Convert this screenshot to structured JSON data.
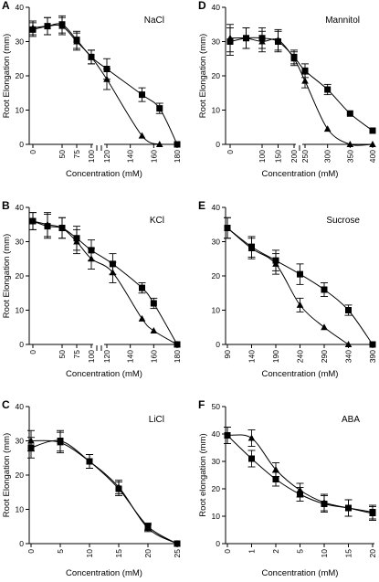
{
  "chart_data": [
    {
      "type": "line",
      "letter": "A",
      "title": "NaCl",
      "xlabel": "Concentration (mM)",
      "ylabel": "Root Elongation (mm)",
      "ylim": [
        0,
        40
      ],
      "yticks": [
        0,
        10,
        20,
        30,
        40
      ],
      "axis_break": true,
      "xticks": [
        0,
        50,
        75,
        100,
        120,
        140,
        160,
        180
      ],
      "tick_labels": [
        "0",
        "50",
        "75",
        "100",
        "120",
        "140",
        "160",
        "180"
      ],
      "marker_color": "#000000",
      "series": [
        {
          "marker": "square",
          "x": [
            0,
            25,
            50,
            75,
            100,
            120,
            150,
            165,
            180
          ],
          "y": [
            33.5,
            34.5,
            35.0,
            30.5,
            25.5,
            22.0,
            14.5,
            10.5,
            0
          ],
          "err": [
            2.0,
            2.5,
            2.5,
            2.5,
            2.0,
            3.0,
            2.0,
            1.5,
            0
          ]
        },
        {
          "marker": "triangle",
          "x": [
            0,
            25,
            50,
            75,
            100,
            120,
            150,
            165
          ],
          "y": [
            34.0,
            34.5,
            34.5,
            30.0,
            25.5,
            19.0,
            2.5,
            0
          ],
          "err": [
            2.0,
            2.5,
            2.5,
            2.5,
            2.0,
            3.0,
            0,
            0
          ]
        }
      ]
    },
    {
      "type": "line",
      "letter": "D",
      "title": "Mannitol",
      "xlabel": "Concentration (mM)",
      "ylabel": "Root Elongation (mm)",
      "ylim": [
        0,
        40
      ],
      "yticks": [
        0,
        10,
        20,
        30,
        40
      ],
      "axis_break": true,
      "xticks": [
        0,
        100,
        150,
        200,
        250,
        300,
        350,
        400
      ],
      "tick_labels": [
        "0",
        "100",
        "150",
        "200",
        "250",
        "300",
        "350",
        "400"
      ],
      "marker_color": "#000000",
      "series": [
        {
          "marker": "square",
          "x": [
            0,
            50,
            100,
            150,
            200,
            250,
            300,
            350,
            400
          ],
          "y": [
            30.0,
            31.0,
            31.0,
            30.0,
            25.5,
            21.5,
            16.0,
            9.0,
            4.0
          ],
          "err": [
            4.0,
            3.0,
            3.0,
            3.0,
            2.0,
            2.0,
            1.5,
            0,
            0
          ]
        },
        {
          "marker": "triangle",
          "x": [
            0,
            50,
            100,
            150,
            200,
            250,
            300,
            350,
            400
          ],
          "y": [
            31.0,
            31.0,
            30.0,
            30.5,
            25.0,
            18.5,
            4.5,
            0,
            0
          ],
          "err": [
            4.0,
            3.0,
            3.0,
            3.0,
            2.0,
            2.0,
            0,
            0,
            0
          ]
        }
      ]
    },
    {
      "type": "line",
      "letter": "B",
      "title": "KCl",
      "xlabel": "Concentration (mM)",
      "ylabel": "Root Elongation (mm)",
      "ylim": [
        0,
        40
      ],
      "yticks": [
        0,
        10,
        20,
        30,
        40
      ],
      "axis_break": true,
      "xticks": [
        0,
        50,
        75,
        100,
        120,
        140,
        160,
        180
      ],
      "tick_labels": [
        "0",
        "50",
        "75",
        "100",
        "120",
        "140",
        "160",
        "180"
      ],
      "marker_color": "#000000",
      "series": [
        {
          "marker": "square",
          "x": [
            0,
            25,
            50,
            75,
            100,
            125,
            150,
            160,
            180
          ],
          "y": [
            36.0,
            34.5,
            34.0,
            31.0,
            27.5,
            23.5,
            16.5,
            12.0,
            0
          ],
          "err": [
            2.5,
            3.5,
            3.0,
            3.5,
            3.0,
            3.0,
            1.5,
            1.5,
            0
          ]
        },
        {
          "marker": "triangle",
          "x": [
            0,
            25,
            50,
            75,
            100,
            125,
            150,
            160,
            180
          ],
          "y": [
            36.0,
            35.0,
            34.0,
            30.0,
            25.0,
            21.0,
            7.5,
            4.0,
            0
          ],
          "err": [
            2.5,
            3.5,
            3.0,
            3.5,
            3.0,
            3.0,
            0,
            0,
            0
          ]
        }
      ]
    },
    {
      "type": "line",
      "letter": "E",
      "title": "Sucrose",
      "xlabel": "Concentration (mM)",
      "ylabel": "",
      "ylim": [
        0,
        40
      ],
      "yticks": [
        0,
        10,
        20,
        30,
        40
      ],
      "axis_break": false,
      "xticks": [
        90,
        140,
        190,
        240,
        290,
        340,
        390
      ],
      "tick_labels": [
        "90",
        "140",
        "190",
        "240",
        "290",
        "340",
        "390"
      ],
      "marker_color": "#000000",
      "series": [
        {
          "marker": "square",
          "x": [
            90,
            140,
            190,
            240,
            290,
            340,
            390
          ],
          "y": [
            34.0,
            28.5,
            24.5,
            20.5,
            16.0,
            10.0,
            0
          ],
          "err": [
            3.0,
            3.0,
            3.0,
            3.0,
            2.0,
            1.5,
            0
          ]
        },
        {
          "marker": "triangle",
          "x": [
            90,
            140,
            190,
            240,
            290,
            340
          ],
          "y": [
            34.0,
            28.0,
            23.5,
            11.5,
            5.0,
            0
          ],
          "err": [
            3.0,
            3.0,
            3.0,
            2.0,
            0,
            0
          ]
        }
      ]
    },
    {
      "type": "line",
      "letter": "C",
      "title": "LiCl",
      "xlabel": "Concentration (mM)",
      "ylabel": "Root Elongation (mm)",
      "ylim": [
        0,
        40
      ],
      "yticks": [
        0,
        10,
        20,
        30,
        40
      ],
      "axis_break": false,
      "xticks": [
        0,
        5,
        10,
        15,
        20,
        25
      ],
      "tick_labels": [
        "0",
        "5",
        "10",
        "15",
        "20",
        "25"
      ],
      "marker_color": "#000000",
      "series": [
        {
          "marker": "square",
          "x": [
            0,
            5,
            10,
            15,
            20,
            25
          ],
          "y": [
            28.0,
            30.0,
            24.0,
            16.0,
            5.0,
            0
          ],
          "err": [
            3.0,
            3.0,
            2.0,
            2.0,
            1.0,
            0
          ]
        },
        {
          "marker": "triangle",
          "x": [
            0,
            5,
            10,
            15,
            20,
            25
          ],
          "y": [
            30.0,
            29.5,
            24.0,
            16.5,
            4.5,
            0
          ],
          "err": [
            3.0,
            3.0,
            2.0,
            2.0,
            1.0,
            0
          ]
        }
      ]
    },
    {
      "type": "line",
      "letter": "F",
      "title": "ABA",
      "xlabel": "Concentration (mM)",
      "ylabel": "Root elongation (mm)",
      "ylim": [
        0,
        50
      ],
      "yticks": [
        0,
        10,
        20,
        30,
        40,
        50
      ],
      "axis_break": false,
      "xticks": [
        0,
        1,
        2,
        5,
        10,
        15,
        20
      ],
      "tick_labels": [
        "0",
        "1",
        "2",
        "5",
        "10",
        "15",
        "20"
      ],
      "marker_color": "#000000",
      "series": [
        {
          "marker": "square",
          "x": [
            0,
            1,
            2,
            5,
            10,
            15,
            20
          ],
          "y": [
            39.5,
            31.0,
            23.5,
            18.0,
            14.5,
            13.0,
            11.5
          ],
          "err": [
            3.0,
            3.0,
            2.5,
            2.5,
            3.0,
            3.0,
            2.5
          ]
        },
        {
          "marker": "triangle",
          "x": [
            0,
            1,
            2,
            5,
            10,
            15,
            20
          ],
          "y": [
            39.5,
            38.5,
            27.0,
            19.5,
            15.0,
            13.0,
            11.0
          ],
          "err": [
            3.0,
            3.0,
            2.5,
            2.5,
            3.0,
            3.0,
            2.5
          ]
        }
      ]
    }
  ]
}
